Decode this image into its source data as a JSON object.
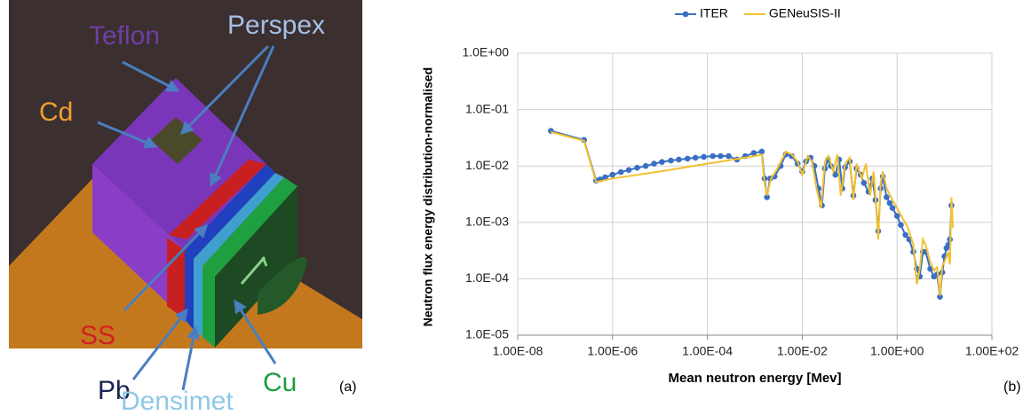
{
  "panel_a": {
    "labels": {
      "teflon": "Teflon",
      "perspex": "Perspex",
      "cd": "Cd",
      "ss": "SS",
      "pb": "Pb",
      "densimet": "Densimet",
      "cu": "Cu"
    },
    "caption": "(a)"
  },
  "panel_b": {
    "caption": "(b)"
  },
  "chart_data": {
    "type": "line",
    "x_label": "Mean neutron energy [Mev]",
    "y_label": "Neutron flux energy distribution-normalised",
    "xscale": "log",
    "yscale": "log",
    "grid": true,
    "legend": "top",
    "xlim": [
      1e-08,
      100
    ],
    "xticks": [
      {
        "value": 1e-08,
        "label": "1.00E-08"
      },
      {
        "value": 1e-06,
        "label": "1.00E-06"
      },
      {
        "value": 0.0001,
        "label": "1.00E-04"
      },
      {
        "value": 0.01,
        "label": "1.00E-02"
      },
      {
        "value": 1,
        "label": "1.00E+00"
      },
      {
        "value": 100,
        "label": "1.00E+02"
      }
    ],
    "ylim": [
      1e-05,
      1
    ],
    "yticks": [
      {
        "value": 1e-05,
        "label": "1.0E-05"
      },
      {
        "value": 0.0001,
        "label": "1.0E-04"
      },
      {
        "value": 0.001,
        "label": "1.0E-03"
      },
      {
        "value": 0.01,
        "label": "1.0E-02"
      },
      {
        "value": 0.1,
        "label": "1.0E-01"
      },
      {
        "value": 1,
        "label": "1.0E+00"
      }
    ],
    "series": [
      {
        "name": "ITER",
        "color": "#3a6fc4",
        "markers": true,
        "x": [
          5e-08,
          2.5e-07,
          4.5e-07,
          5.5e-07,
          7e-07,
          1e-06,
          1.5e-06,
          2.2e-06,
          3.3e-06,
          5e-06,
          7.5e-06,
          1.1e-05,
          1.7e-05,
          2.5e-05,
          3.8e-05,
          5.6e-05,
          8.4e-05,
          0.00013,
          0.00019,
          0.00028,
          0.00042,
          0.00063,
          0.00095,
          0.0014,
          0.0016,
          0.0018,
          0.0021,
          0.0026,
          0.0035,
          0.0045,
          0.006,
          0.008,
          0.01,
          0.012,
          0.015,
          0.018,
          0.022,
          0.026,
          0.03,
          0.035,
          0.04,
          0.05,
          0.06,
          0.07,
          0.08,
          0.1,
          0.12,
          0.14,
          0.17,
          0.2,
          0.25,
          0.3,
          0.35,
          0.4,
          0.45,
          0.5,
          0.6,
          0.7,
          0.8,
          1,
          1.2,
          1.5,
          1.8,
          2.2,
          2.6,
          3,
          3.5,
          4,
          5,
          6,
          7,
          8,
          9,
          10,
          11,
          12,
          13,
          14
        ],
        "values": [
          0.042,
          0.029,
          0.0055,
          0.0058,
          0.0063,
          0.007,
          0.0078,
          0.0085,
          0.0093,
          0.01,
          0.011,
          0.0118,
          0.0125,
          0.013,
          0.0135,
          0.014,
          0.0145,
          0.015,
          0.015,
          0.015,
          0.013,
          0.015,
          0.017,
          0.018,
          0.006,
          0.0028,
          0.006,
          0.0065,
          0.01,
          0.016,
          0.015,
          0.011,
          0.008,
          0.012,
          0.014,
          0.01,
          0.004,
          0.002,
          0.009,
          0.013,
          0.01,
          0.007,
          0.013,
          0.004,
          0.0095,
          0.012,
          0.003,
          0.009,
          0.007,
          0.005,
          0.0035,
          0.006,
          0.0025,
          0.0007,
          0.004,
          0.0065,
          0.0028,
          0.0022,
          0.0018,
          0.0013,
          0.0009,
          0.0006,
          0.0005,
          0.0003,
          0.00015,
          0.00011,
          0.0003,
          0.0003,
          0.00015,
          0.00011,
          0.00012,
          4.8e-05,
          0.00013,
          0.00025,
          0.00035,
          0.0004,
          0.0005,
          0.002
        ]
      },
      {
        "name": "GENeuSIS-II",
        "color": "#f2c12e",
        "markers": false,
        "x": [
          5e-08,
          2.5e-07,
          4.5e-07,
          1e-06,
          1e-05,
          0.0001,
          0.001,
          0.0014,
          0.0016,
          0.0018,
          0.0022,
          0.003,
          0.0045,
          0.006,
          0.008,
          0.01,
          0.013,
          0.016,
          0.02,
          0.025,
          0.03,
          0.036,
          0.045,
          0.055,
          0.065,
          0.08,
          0.1,
          0.12,
          0.14,
          0.18,
          0.22,
          0.27,
          0.32,
          0.36,
          0.4,
          0.45,
          0.5,
          0.6,
          0.8,
          1,
          1.3,
          1.7,
          2.2,
          2.6,
          3,
          3.5,
          4,
          5,
          6,
          7,
          8,
          9,
          10,
          12,
          13,
          14,
          15
        ],
        "values": [
          0.04,
          0.028,
          0.0052,
          0.006,
          0.008,
          0.011,
          0.015,
          0.016,
          0.005,
          0.003,
          0.006,
          0.009,
          0.018,
          0.016,
          0.012,
          0.007,
          0.015,
          0.012,
          0.004,
          0.0018,
          0.012,
          0.015,
          0.008,
          0.016,
          0.003,
          0.011,
          0.014,
          0.0025,
          0.011,
          0.006,
          0.011,
          0.003,
          0.008,
          0.002,
          0.0005,
          0.005,
          0.008,
          0.004,
          0.0025,
          0.0018,
          0.0012,
          0.0008,
          0.0004,
          8e-05,
          0.00015,
          0.0005,
          0.0004,
          0.0002,
          0.00014,
          0.00016,
          5e-05,
          0.00017,
          0.0002,
          0.0003,
          0.00018,
          0.0028,
          0.0008
        ]
      }
    ]
  }
}
